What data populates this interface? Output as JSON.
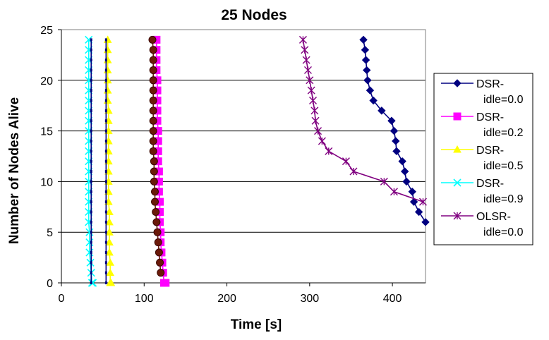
{
  "chart_data": {
    "type": "line",
    "title": "25 Nodes",
    "xlabel": "Time [s]",
    "ylabel": "Number of Nodes Alive",
    "xlim": [
      0,
      440
    ],
    "ylim": [
      0,
      25
    ],
    "xticks": [
      "0",
      "100",
      "200",
      "300",
      "400"
    ],
    "yticks": [
      "0",
      "5",
      "10",
      "15",
      "20",
      "25"
    ],
    "grid": "horizontal",
    "legend_position": "right",
    "series": [
      {
        "name": "DSR-\nidle=0.0",
        "color": "#000080",
        "marker": "diamond",
        "x": [
          365,
          367,
          368,
          369,
          370,
          373,
          377,
          387,
          399,
          402,
          404,
          405,
          412,
          415,
          417,
          424,
          426,
          432,
          440
        ],
        "y": [
          24,
          23,
          22,
          21,
          20,
          19,
          18,
          17,
          16,
          15,
          14,
          13,
          12,
          11,
          10,
          9,
          8,
          7,
          6
        ]
      },
      {
        "name": "DSR-\nidle=0.2",
        "color": "#ff00ff",
        "marker": "square",
        "x": [
          115,
          115,
          115,
          115,
          116,
          116,
          116,
          116,
          116,
          117,
          117,
          117,
          117,
          118,
          118,
          118,
          119,
          119,
          119,
          120,
          120,
          121,
          122,
          123,
          124,
          126
        ],
        "y": [
          24,
          23,
          22,
          21,
          20,
          19,
          18,
          17,
          16,
          15,
          14,
          13,
          12,
          11,
          10,
          9,
          8,
          7,
          6,
          5,
          4,
          3,
          2,
          1,
          0,
          0
        ]
      },
      {
        "name": "DSR-\nidle=0.5",
        "color": "#ffff00",
        "marker": "triangle",
        "x": [
          56,
          56,
          56,
          56,
          56,
          56,
          56,
          57,
          57,
          57,
          57,
          57,
          57,
          57,
          57,
          57,
          57,
          58,
          58,
          58,
          58,
          58,
          59,
          59,
          59,
          60
        ],
        "y": [
          24,
          23,
          22,
          21,
          20,
          19,
          18,
          17,
          16,
          15,
          14,
          13,
          12,
          11,
          10,
          9,
          8,
          7,
          6,
          5,
          4,
          3,
          2,
          1,
          0,
          0
        ]
      },
      {
        "name": "DSR-\nidle=0.9",
        "color": "#00ffff",
        "marker": "x",
        "x": [
          33,
          33,
          33,
          33,
          33,
          33,
          33,
          33,
          33,
          33,
          33,
          33,
          33,
          33,
          33,
          33,
          33,
          33,
          33,
          34,
          34,
          34,
          35,
          36,
          37,
          38
        ],
        "y": [
          24,
          23,
          22,
          21,
          20,
          19,
          18,
          17,
          16,
          15,
          14,
          13,
          12,
          11,
          10,
          9,
          8,
          7,
          6,
          5,
          4,
          3,
          2,
          1,
          0,
          0
        ]
      },
      {
        "name": "OLSR-\nidle=0.0",
        "color": "#800080",
        "marker": "star",
        "x": [
          292,
          294,
          296,
          298,
          300,
          302,
          304,
          306,
          307,
          310,
          315,
          323,
          344,
          353,
          390,
          402,
          437
        ],
        "y": [
          24,
          23,
          22,
          21,
          20,
          19,
          18,
          17,
          16,
          15,
          14,
          13,
          12,
          11,
          10,
          9,
          8
        ]
      },
      {
        "name": "",
        "color": "#000080",
        "marker": "dot",
        "x": [
          36,
          36,
          36,
          36,
          36,
          36,
          36,
          36,
          36,
          36,
          36,
          36,
          36,
          36,
          36,
          36,
          36,
          36,
          36,
          36,
          36,
          36,
          36,
          36,
          36
        ],
        "y": [
          24,
          23,
          22,
          21,
          20,
          19,
          18,
          17,
          16,
          15,
          14,
          13,
          12,
          11,
          10,
          9,
          8,
          7,
          6,
          5,
          4,
          3,
          2,
          1,
          0
        ]
      },
      {
        "name": "",
        "color": "#6b1a0a",
        "marker": "circle",
        "x": [
          110,
          111,
          111,
          111,
          111,
          111,
          111,
          111,
          111,
          111,
          111,
          111,
          112,
          112,
          112,
          113,
          113,
          114,
          115,
          116,
          117,
          118,
          119,
          120
        ],
        "y": [
          24,
          23,
          22,
          21,
          20,
          19,
          18,
          17,
          16,
          15,
          14,
          13,
          12,
          11,
          10,
          9,
          8,
          7,
          6,
          5,
          4,
          3,
          2,
          1
        ]
      },
      {
        "name": "",
        "color": "#000080",
        "marker": "dot",
        "x": [
          54,
          54,
          54,
          54,
          54,
          54,
          54,
          54,
          54,
          54,
          54,
          54,
          54,
          54,
          54,
          54,
          54,
          54,
          54,
          54,
          54,
          54,
          54,
          54,
          54
        ],
        "y": [
          24,
          23,
          22,
          21,
          20,
          19,
          18,
          17,
          16,
          15,
          14,
          13,
          12,
          11,
          10,
          9,
          8,
          7,
          6,
          5,
          4,
          3,
          2,
          1,
          0
        ]
      }
    ]
  }
}
